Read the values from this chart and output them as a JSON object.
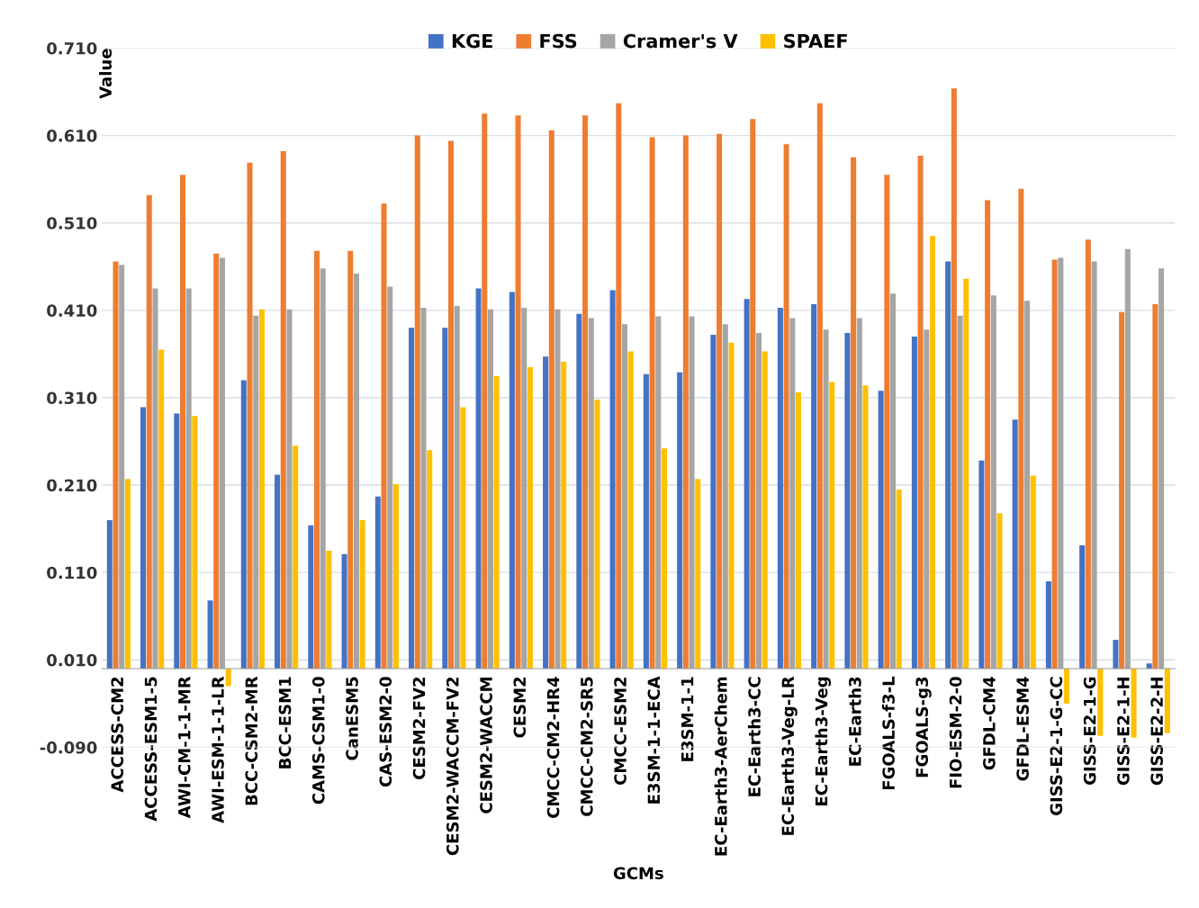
{
  "chart_data": {
    "type": "bar",
    "xlabel": "GCMs",
    "ylabel": "Value",
    "categories": [
      "ACCESS-CM2",
      "ACCESS-ESM1-5",
      "AWI-CM-1-1-MR",
      "AWI-ESM-1-1-LR",
      "BCC-CSM2-MR",
      "BCC-ESM1",
      "CAMS-CSM1-0",
      "CanESM5",
      "CAS-ESM2-0",
      "CESM2-FV2",
      "CESM2-WACCM-FV2",
      "CESM2-WACCM",
      "CESM2",
      "CMCC-CM2-HR4",
      "CMCC-CM2-SR5",
      "CMCC-ESM2",
      "E3SM-1-1-ECA",
      "E3SM-1-1",
      "EC-Earth3-AerChem",
      "EC-Earth3-CC",
      "EC-Earth3-Veg-LR",
      "EC-Earth3-Veg",
      "EC-Earth3",
      "FGOALS-f3-L",
      "FGOALS-g3",
      "FIO-ESM-2-0",
      "GFDL-CM4",
      "GFDL-ESM4",
      "GISS-E2-1-G-CC",
      "GISS-E2-1-G",
      "GISS-E2-1-H",
      "GISS-E2-2-H"
    ],
    "series": [
      {
        "name": "KGE",
        "color": "#4472c4",
        "values": [
          0.17,
          0.299,
          0.292,
          0.078,
          0.33,
          0.222,
          0.164,
          0.131,
          0.197,
          0.39,
          0.39,
          0.435,
          0.431,
          0.357,
          0.406,
          0.433,
          0.337,
          0.339,
          0.382,
          0.423,
          0.413,
          0.417,
          0.384,
          0.318,
          0.38,
          0.466,
          0.238,
          0.285,
          0.1,
          0.141,
          0.033,
          0.006
        ]
      },
      {
        "name": "FSS",
        "color": "#ed7d31",
        "values": [
          0.466,
          0.542,
          0.565,
          0.475,
          0.579,
          0.592,
          0.478,
          0.478,
          0.532,
          0.61,
          0.604,
          0.635,
          0.633,
          0.616,
          0.633,
          0.647,
          0.608,
          0.61,
          0.612,
          0.629,
          0.6,
          0.647,
          0.585,
          0.565,
          0.587,
          0.664,
          0.536,
          0.549,
          0.468,
          0.491,
          0.408,
          0.417
        ]
      },
      {
        "name": "Cramer's V",
        "color": "#a5a5a5",
        "values": [
          0.462,
          0.435,
          0.435,
          0.47,
          0.404,
          0.411,
          0.458,
          0.452,
          0.437,
          0.413,
          0.415,
          0.411,
          0.413,
          0.411,
          0.401,
          0.394,
          0.403,
          0.403,
          0.394,
          0.384,
          0.401,
          0.388,
          0.401,
          0.429,
          0.388,
          0.404,
          0.427,
          0.421,
          0.47,
          0.466,
          0.48,
          0.458
        ]
      },
      {
        "name": "SPAEF",
        "color": "#ffc000",
        "values": [
          0.217,
          0.365,
          0.289,
          -0.02,
          0.411,
          0.255,
          0.135,
          0.17,
          0.211,
          0.25,
          0.299,
          0.335,
          0.345,
          0.351,
          0.308,
          0.363,
          0.252,
          0.217,
          0.373,
          0.363,
          0.316,
          0.328,
          0.324,
          0.205,
          0.495,
          0.446,
          0.178,
          0.221,
          -0.04,
          -0.077,
          -0.079,
          -0.074
        ]
      }
    ],
    "ylim": [
      -0.09,
      0.71
    ],
    "yticks": [
      {
        "value": -0.09,
        "label": "-0.090"
      },
      {
        "value": 0.01,
        "label": "0.010"
      },
      {
        "value": 0.11,
        "label": "0.110"
      },
      {
        "value": 0.21,
        "label": "0.210"
      },
      {
        "value": 0.31,
        "label": "0.310"
      },
      {
        "value": 0.41,
        "label": "0.410"
      },
      {
        "value": 0.51,
        "label": "0.510"
      },
      {
        "value": 0.61,
        "label": "0.610"
      },
      {
        "value": 0.71,
        "label": "0.710"
      }
    ],
    "grid": "y",
    "legend": "top"
  }
}
